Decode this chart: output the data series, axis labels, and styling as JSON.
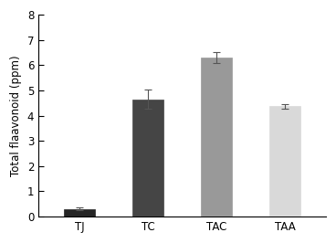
{
  "categories": [
    "TJ",
    "TC",
    "TAC",
    "TAA"
  ],
  "values": [
    0.3,
    4.65,
    6.3,
    4.38
  ],
  "errors": [
    0.06,
    0.38,
    0.22,
    0.09
  ],
  "bar_colors": [
    "#252525",
    "#454545",
    "#999999",
    "#d9d9d9"
  ],
  "bar_edge_colors": [
    "#252525",
    "#454545",
    "#999999",
    "#d9d9d9"
  ],
  "ylabel": "Total flaavonoid (ppm)",
  "ylim": [
    0,
    8
  ],
  "yticks": [
    0,
    1,
    2,
    3,
    4,
    5,
    6,
    7,
    8
  ],
  "bar_width": 0.45,
  "background_color": "#ffffff",
  "ylabel_fontsize": 8.5,
  "tick_fontsize": 8.5,
  "capsize": 3,
  "ecolor": "#555555",
  "elinewidth": 0.8
}
